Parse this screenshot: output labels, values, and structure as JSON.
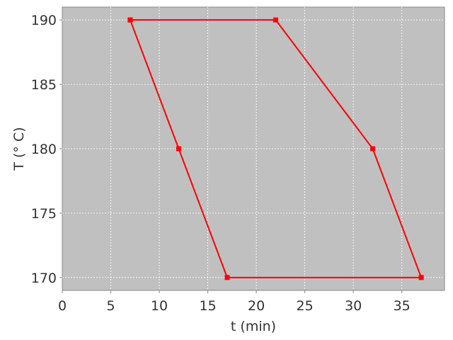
{
  "chart_data": {
    "type": "line",
    "title": "",
    "xlabel": "t (min)",
    "ylabel": "T (° C)",
    "xlim": [
      0,
      39.4
    ],
    "ylim": [
      169,
      191
    ],
    "xticks": [
      0,
      5,
      10,
      15,
      20,
      25,
      30,
      35
    ],
    "yticks": [
      170,
      175,
      180,
      185,
      190
    ],
    "grid": true,
    "background": "#c0c0c0",
    "series": [
      {
        "color": "#ff0000",
        "marker": "square",
        "x": [
          7,
          22,
          32,
          37,
          17,
          12,
          7
        ],
        "y": [
          190,
          190,
          180,
          170,
          170,
          180,
          190
        ]
      }
    ]
  }
}
